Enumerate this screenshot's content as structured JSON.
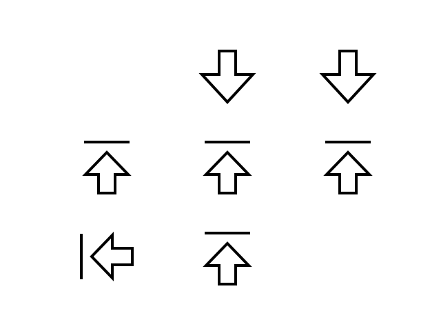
{
  "colors": {
    "background": "#ffffff",
    "stroke": "#000000"
  },
  "icon_grid": {
    "rows": [
      [
        "",
        "arrow-down-icon",
        "arrow-down-icon"
      ],
      [
        "arrow-up-to-line-icon",
        "arrow-up-to-line-icon",
        "arrow-up-to-line-icon"
      ],
      [
        "arrow-left-to-line-icon",
        "arrow-up-to-line-icon",
        ""
      ]
    ]
  }
}
